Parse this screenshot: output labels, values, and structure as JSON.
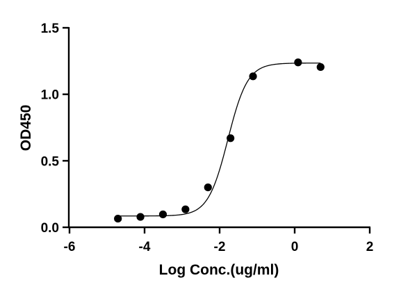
{
  "chart_data": {
    "type": "scatter",
    "title": "",
    "xlabel": "Log Conc.(ug/ml)",
    "ylabel": "OD450",
    "xlim": [
      -6,
      2
    ],
    "ylim": [
      0,
      1.5
    ],
    "x_ticks": [
      -6,
      -4,
      -2,
      0,
      2
    ],
    "y_ticks": [
      0.0,
      0.5,
      1.0,
      1.5
    ],
    "x_tick_labels": [
      "-6",
      "-4",
      "-2",
      "0",
      "2"
    ],
    "y_tick_labels": [
      "0.0",
      "0.5",
      "1.0",
      "1.5"
    ],
    "points": {
      "x": [
        -4.71,
        -4.11,
        -3.51,
        -2.91,
        -2.31,
        -1.71,
        -1.11,
        0.09,
        0.69
      ],
      "y": [
        0.065,
        0.078,
        0.097,
        0.135,
        0.3,
        0.67,
        1.135,
        1.24,
        1.205
      ]
    },
    "fit_curve": {
      "model": "4PL sigmoid",
      "bottom": 0.085,
      "top": 1.235,
      "log_ec50": -1.78,
      "hill_slope": 1.65,
      "x_range": [
        -4.71,
        0.69
      ]
    },
    "grid": false,
    "legend": "none",
    "colors": {
      "points": "#000000",
      "curve": "#000000",
      "axes": "#000000"
    }
  }
}
